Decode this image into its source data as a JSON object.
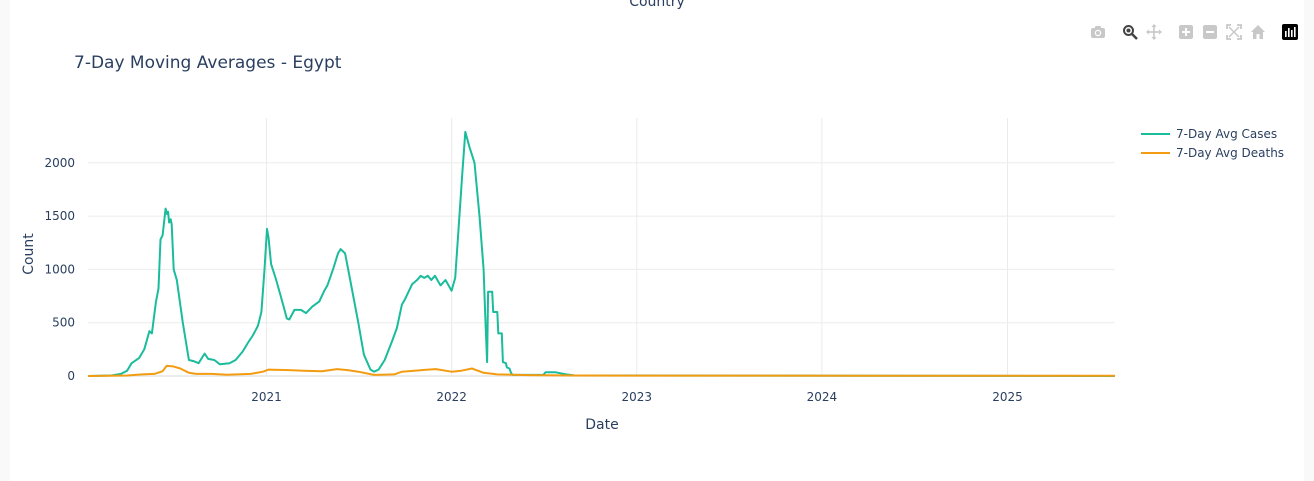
{
  "header": {
    "top_label": "Country"
  },
  "modebar": {
    "buttons": [
      {
        "name": "camera-icon"
      },
      {
        "name": "zoom-icon"
      },
      {
        "name": "pan-icon"
      },
      {
        "name": "zoom-in-icon"
      },
      {
        "name": "zoom-out-icon"
      },
      {
        "name": "autoscale-icon"
      },
      {
        "name": "reset-axes-icon"
      },
      {
        "name": "plotly-logo-icon"
      }
    ]
  },
  "chart_data": {
    "type": "line",
    "title": "7-Day Moving Averages - Egypt",
    "xlabel": "Date",
    "ylabel": "Count",
    "xlim": [
      "2020-01-15",
      "2025-08-01"
    ],
    "ylim": [
      0,
      2420
    ],
    "x_ticks": [
      "2021",
      "2022",
      "2023",
      "2024",
      "2025"
    ],
    "y_ticks": [
      0,
      500,
      1000,
      1500,
      2000
    ],
    "grid": true,
    "legend_position": "top-right",
    "colors": {
      "cases": "#1abc9c",
      "deaths": "#f39c12",
      "grid": "#ebebeb",
      "text": "#2a3f5f"
    },
    "series": [
      {
        "name": "7-Day Avg Cases",
        "color": "#1abc9c",
        "points": [
          [
            "2020-01-15",
            0
          ],
          [
            "2020-03-01",
            5
          ],
          [
            "2020-03-20",
            20
          ],
          [
            "2020-04-01",
            50
          ],
          [
            "2020-04-10",
            120
          ],
          [
            "2020-04-25",
            170
          ],
          [
            "2020-05-05",
            250
          ],
          [
            "2020-05-15",
            420
          ],
          [
            "2020-05-20",
            400
          ],
          [
            "2020-05-28",
            700
          ],
          [
            "2020-06-02",
            820
          ],
          [
            "2020-06-06",
            1280
          ],
          [
            "2020-06-10",
            1320
          ],
          [
            "2020-06-16",
            1570
          ],
          [
            "2020-06-19",
            1520
          ],
          [
            "2020-06-21",
            1540
          ],
          [
            "2020-06-23",
            1440
          ],
          [
            "2020-06-26",
            1470
          ],
          [
            "2020-06-28",
            1420
          ],
          [
            "2020-07-02",
            1000
          ],
          [
            "2020-07-08",
            900
          ],
          [
            "2020-07-20",
            500
          ],
          [
            "2020-08-01",
            150
          ],
          [
            "2020-08-10",
            140
          ],
          [
            "2020-08-20",
            120
          ],
          [
            "2020-09-01",
            210
          ],
          [
            "2020-09-08",
            160
          ],
          [
            "2020-09-20",
            150
          ],
          [
            "2020-10-01",
            110
          ],
          [
            "2020-10-20",
            120
          ],
          [
            "2020-11-01",
            150
          ],
          [
            "2020-11-15",
            230
          ],
          [
            "2020-11-25",
            310
          ],
          [
            "2020-12-05",
            380
          ],
          [
            "2020-12-15",
            470
          ],
          [
            "2020-12-22",
            600
          ],
          [
            "2020-12-28",
            1000
          ],
          [
            "2021-01-02",
            1380
          ],
          [
            "2021-01-05",
            1300
          ],
          [
            "2021-01-10",
            1050
          ],
          [
            "2021-01-20",
            900
          ],
          [
            "2021-02-01",
            700
          ],
          [
            "2021-02-10",
            540
          ],
          [
            "2021-02-15",
            530
          ],
          [
            "2021-02-25",
            620
          ],
          [
            "2021-03-10",
            620
          ],
          [
            "2021-03-20",
            590
          ],
          [
            "2021-04-01",
            650
          ],
          [
            "2021-04-15",
            700
          ],
          [
            "2021-04-25",
            800
          ],
          [
            "2021-05-01",
            850
          ],
          [
            "2021-05-12",
            1000
          ],
          [
            "2021-05-22",
            1150
          ],
          [
            "2021-05-27",
            1190
          ],
          [
            "2021-06-05",
            1150
          ],
          [
            "2021-06-15",
            900
          ],
          [
            "2021-07-01",
            500
          ],
          [
            "2021-07-12",
            200
          ],
          [
            "2021-07-25",
            60
          ],
          [
            "2021-08-01",
            40
          ],
          [
            "2021-08-10",
            60
          ],
          [
            "2021-08-22",
            150
          ],
          [
            "2021-09-05",
            320
          ],
          [
            "2021-09-15",
            450
          ],
          [
            "2021-09-25",
            670
          ],
          [
            "2021-10-01",
            720
          ],
          [
            "2021-10-15",
            860
          ],
          [
            "2021-10-25",
            900
          ],
          [
            "2021-11-01",
            940
          ],
          [
            "2021-11-08",
            920
          ],
          [
            "2021-11-15",
            940
          ],
          [
            "2021-11-22",
            900
          ],
          [
            "2021-11-29",
            940
          ],
          [
            "2021-12-10",
            850
          ],
          [
            "2021-12-20",
            900
          ],
          [
            "2022-01-01",
            800
          ],
          [
            "2022-01-08",
            920
          ],
          [
            "2022-01-15",
            1400
          ],
          [
            "2022-01-22",
            1900
          ],
          [
            "2022-01-28",
            2290
          ],
          [
            "2022-02-05",
            2150
          ],
          [
            "2022-02-15",
            2000
          ],
          [
            "2022-02-25",
            1500
          ],
          [
            "2022-03-05",
            1000
          ],
          [
            "2022-03-08",
            600
          ],
          [
            "2022-03-12",
            130
          ],
          [
            "2022-03-14",
            790
          ],
          [
            "2022-03-22",
            790
          ],
          [
            "2022-03-24",
            600
          ],
          [
            "2022-04-01",
            600
          ],
          [
            "2022-04-03",
            400
          ],
          [
            "2022-04-10",
            400
          ],
          [
            "2022-04-12",
            130
          ],
          [
            "2022-04-18",
            120
          ],
          [
            "2022-04-20",
            80
          ],
          [
            "2022-04-25",
            70
          ],
          [
            "2022-04-28",
            30
          ],
          [
            "2022-05-01",
            10
          ],
          [
            "2022-07-01",
            10
          ],
          [
            "2022-07-05",
            35
          ],
          [
            "2022-07-25",
            35
          ],
          [
            "2022-08-15",
            15
          ],
          [
            "2022-09-01",
            5
          ],
          [
            "2025-08-01",
            0
          ]
        ]
      },
      {
        "name": "7-Day Avg Deaths",
        "color": "#f39c12",
        "points": [
          [
            "2020-01-15",
            0
          ],
          [
            "2020-04-01",
            5
          ],
          [
            "2020-05-01",
            15
          ],
          [
            "2020-05-25",
            20
          ],
          [
            "2020-06-10",
            45
          ],
          [
            "2020-06-18",
            95
          ],
          [
            "2020-07-01",
            90
          ],
          [
            "2020-07-15",
            70
          ],
          [
            "2020-08-01",
            30
          ],
          [
            "2020-08-15",
            20
          ],
          [
            "2020-09-15",
            20
          ],
          [
            "2020-10-15",
            12
          ],
          [
            "2020-12-01",
            20
          ],
          [
            "2020-12-25",
            40
          ],
          [
            "2021-01-05",
            60
          ],
          [
            "2021-02-15",
            55
          ],
          [
            "2021-03-15",
            50
          ],
          [
            "2021-04-20",
            45
          ],
          [
            "2021-05-20",
            65
          ],
          [
            "2021-06-10",
            55
          ],
          [
            "2021-07-01",
            40
          ],
          [
            "2021-08-01",
            10
          ],
          [
            "2021-09-10",
            15
          ],
          [
            "2021-09-25",
            40
          ],
          [
            "2021-11-15",
            60
          ],
          [
            "2021-12-01",
            65
          ],
          [
            "2022-01-01",
            40
          ],
          [
            "2022-01-20",
            50
          ],
          [
            "2022-02-10",
            70
          ],
          [
            "2022-03-05",
            30
          ],
          [
            "2022-04-01",
            15
          ],
          [
            "2022-06-01",
            8
          ],
          [
            "2022-09-01",
            5
          ],
          [
            "2023-01-01",
            4
          ],
          [
            "2025-08-01",
            2
          ]
        ]
      }
    ]
  }
}
